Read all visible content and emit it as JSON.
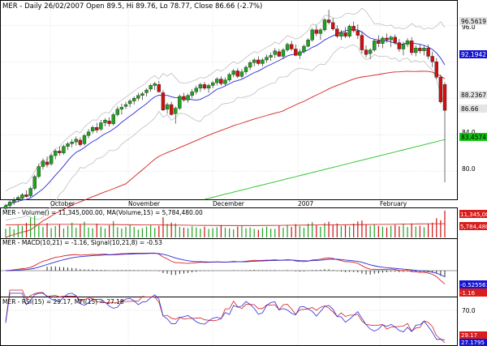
{
  "header": "MER - Daily 26/02/2007 Open 89.5, Hi 89.76, Lo 78.77, Close 86.66 (-2.7%)",
  "colors": {
    "up": "#1fa21f",
    "down": "#d10f0f",
    "ma_fast": "#2b2bd9",
    "ma_mid": "#d52020",
    "ma_slow": "#22c122",
    "band": "#bfbfbf",
    "grid": "#c0c0c0",
    "tag_blue": "#1515d0",
    "tag_red": "#d91c1c",
    "tag_green": "#15c215",
    "tag_gray": "#e4e4e4"
  },
  "x_labels": [
    "October",
    "November",
    "December",
    "2007",
    "February"
  ],
  "price_panel": {
    "axis_labels": [
      "96.5619",
      "96.0",
      "92.1942",
      "88.2367",
      "86.66",
      "84.0",
      "83.4574",
      "80.0"
    ],
    "tags": [
      {
        "text": "96.5619",
        "style": "gray"
      },
      {
        "text": "92.1942",
        "style": "blue"
      },
      {
        "text": "88.2367",
        "style": "gray"
      },
      {
        "text": "86.66",
        "style": "gray"
      },
      {
        "text": "83.4574",
        "style": "green"
      }
    ]
  },
  "volume_panel": {
    "label": "MER - Volume() = 11,345,000.00, MA(Volume,15) = 5,784,480.00",
    "tags": [
      "11,345,000",
      "5,784,480"
    ]
  },
  "macd_panel": {
    "label": "MER - MACD(10,21) = -1.16, Signal(10,21,8) = -0.53",
    "tags": [
      "-0.525561",
      "-1.16"
    ]
  },
  "rsi_panel": {
    "label": "MER - RSI(15) = 29.17, MFI(15) = 27.18",
    "axis": [
      "70.0"
    ],
    "tags": [
      "29.17",
      "27.1795"
    ]
  },
  "chart_data": {
    "type": "candlestick",
    "title": "MER - Daily 26/02/2007 Open 89.5, Hi 89.76, Lo 78.77, Close 86.66 (-2.7%)",
    "ylim": [
      76.9,
      98.6
    ],
    "candles": [
      [
        75.9,
        76.4,
        75.7,
        76.2
      ],
      [
        76.2,
        76.8,
        76.0,
        76.6
      ],
      [
        76.6,
        77.1,
        76.3,
        76.8
      ],
      [
        76.9,
        77.3,
        76.6,
        77.1
      ],
      [
        77.0,
        77.6,
        76.8,
        77.4
      ],
      [
        77.4,
        77.9,
        77.1,
        77.2
      ],
      [
        77.3,
        78.3,
        77.1,
        78.1
      ],
      [
        78.1,
        79.6,
        77.9,
        79.4
      ],
      [
        79.4,
        80.8,
        79.2,
        80.5
      ],
      [
        80.5,
        81.4,
        80.2,
        81.1
      ],
      [
        81.0,
        81.6,
        80.4,
        80.7
      ],
      [
        80.8,
        81.9,
        80.6,
        81.7
      ],
      [
        81.7,
        82.4,
        81.3,
        82.2
      ],
      [
        82.2,
        82.7,
        81.7,
        82.0
      ],
      [
        82.0,
        82.9,
        81.8,
        82.7
      ],
      [
        82.7,
        83.2,
        82.3,
        83.0
      ],
      [
        83.0,
        83.5,
        82.6,
        83.2
      ],
      [
        83.2,
        83.8,
        82.8,
        83.5
      ],
      [
        83.4,
        83.7,
        82.7,
        82.9
      ],
      [
        83.0,
        84.1,
        82.8,
        83.9
      ],
      [
        83.9,
        84.6,
        83.6,
        84.3
      ],
      [
        84.4,
        85.0,
        84.1,
        84.8
      ],
      [
        84.8,
        85.3,
        84.2,
        84.5
      ],
      [
        84.6,
        85.6,
        84.4,
        85.3
      ],
      [
        85.3,
        85.8,
        84.9,
        85.6
      ],
      [
        85.5,
        85.9,
        84.9,
        85.2
      ],
      [
        85.2,
        86.4,
        85.0,
        86.2
      ],
      [
        86.2,
        87.1,
        86.0,
        86.8
      ],
      [
        86.8,
        87.4,
        86.2,
        87.0
      ],
      [
        87.1,
        87.6,
        86.8,
        87.3
      ],
      [
        87.4,
        87.9,
        87.0,
        87.7
      ],
      [
        87.7,
        88.2,
        87.3,
        88.0
      ],
      [
        88.0,
        88.6,
        87.7,
        88.3
      ],
      [
        88.3,
        88.7,
        87.8,
        88.5
      ],
      [
        88.6,
        89.1,
        88.2,
        88.9
      ],
      [
        89.0,
        89.6,
        88.7,
        89.4
      ],
      [
        89.4,
        89.8,
        88.9,
        89.6
      ],
      [
        89.5,
        89.9,
        88.6,
        88.7
      ],
      [
        88.6,
        88.9,
        86.6,
        86.7
      ],
      [
        86.8,
        87.5,
        86.3,
        87.3
      ],
      [
        87.3,
        87.6,
        86.1,
        86.2
      ],
      [
        86.3,
        87.1,
        85.2,
        86.9
      ],
      [
        86.9,
        88.4,
        86.7,
        88.2
      ],
      [
        88.2,
        88.6,
        87.6,
        87.8
      ],
      [
        87.8,
        88.5,
        87.5,
        88.3
      ],
      [
        88.3,
        89.0,
        88.0,
        88.7
      ],
      [
        88.7,
        89.4,
        88.4,
        89.1
      ],
      [
        89.1,
        89.7,
        88.7,
        89.5
      ],
      [
        89.5,
        89.8,
        88.9,
        89.1
      ],
      [
        89.1,
        89.6,
        88.6,
        89.4
      ],
      [
        89.4,
        89.9,
        89.1,
        89.7
      ],
      [
        89.7,
        90.3,
        89.4,
        90.1
      ],
      [
        90.1,
        90.4,
        89.4,
        89.6
      ],
      [
        89.6,
        90.3,
        89.4,
        90.0
      ],
      [
        90.0,
        90.8,
        89.8,
        90.6
      ],
      [
        90.6,
        91.2,
        90.3,
        91.0
      ],
      [
        91.0,
        91.3,
        90.2,
        90.4
      ],
      [
        90.4,
        91.2,
        90.2,
        90.9
      ],
      [
        90.9,
        91.6,
        90.6,
        91.4
      ],
      [
        91.4,
        92.1,
        91.1,
        91.9
      ],
      [
        91.9,
        92.4,
        91.5,
        92.2
      ],
      [
        92.2,
        92.6,
        91.6,
        91.8
      ],
      [
        91.8,
        92.4,
        91.5,
        92.2
      ],
      [
        92.2,
        92.8,
        91.9,
        92.5
      ],
      [
        92.5,
        93.0,
        92.1,
        92.7
      ],
      [
        92.8,
        93.5,
        92.4,
        93.2
      ],
      [
        93.1,
        93.4,
        92.5,
        92.6
      ],
      [
        92.6,
        93.5,
        92.3,
        93.3
      ],
      [
        93.3,
        94.1,
        93.1,
        93.9
      ],
      [
        93.9,
        94.3,
        93.2,
        93.4
      ],
      [
        93.4,
        93.9,
        92.6,
        92.7
      ],
      [
        92.7,
        93.4,
        92.3,
        93.1
      ],
      [
        93.1,
        93.9,
        92.9,
        93.7
      ],
      [
        93.7,
        94.6,
        93.6,
        94.4
      ],
      [
        94.4,
        95.7,
        94.2,
        95.5
      ],
      [
        95.5,
        96.0,
        94.8,
        95.1
      ],
      [
        95.1,
        95.7,
        94.4,
        95.5
      ],
      [
        95.5,
        96.8,
        95.3,
        96.6
      ],
      [
        96.6,
        97.7,
        96.1,
        96.3
      ],
      [
        96.3,
        96.8,
        95.4,
        95.6
      ],
      [
        95.6,
        96.0,
        94.6,
        94.8
      ],
      [
        94.8,
        95.5,
        94.4,
        95.2
      ],
      [
        95.2,
        95.8,
        94.6,
        94.8
      ],
      [
        94.8,
        96.1,
        94.6,
        95.9
      ],
      [
        95.9,
        96.4,
        95.2,
        95.4
      ],
      [
        95.4,
        96.1,
        94.5,
        94.9
      ],
      [
        94.9,
        95.3,
        92.9,
        93.3
      ],
      [
        93.3,
        93.8,
        92.5,
        92.8
      ],
      [
        92.9,
        93.5,
        92.3,
        93.3
      ],
      [
        93.3,
        94.5,
        93.1,
        94.3
      ],
      [
        94.3,
        94.9,
        93.6,
        94.0
      ],
      [
        94.0,
        94.8,
        93.5,
        94.6
      ],
      [
        94.6,
        95.1,
        94.1,
        94.4
      ],
      [
        94.4,
        94.9,
        93.6,
        94.7
      ],
      [
        94.7,
        95.0,
        93.9,
        94.1
      ],
      [
        94.1,
        94.5,
        93.1,
        93.4
      ],
      [
        93.4,
        94.2,
        92.7,
        93.9
      ],
      [
        93.9,
        94.6,
        93.6,
        94.3
      ],
      [
        94.3,
        94.7,
        92.7,
        93.0
      ],
      [
        93.0,
        93.8,
        92.6,
        93.5
      ],
      [
        93.5,
        93.9,
        92.9,
        93.2
      ],
      [
        93.2,
        93.8,
        92.7,
        93.5
      ],
      [
        93.5,
        93.9,
        92.3,
        92.6
      ],
      [
        92.6,
        93.1,
        91.4,
        92.0
      ],
      [
        92.0,
        92.4,
        90.1,
        90.3
      ],
      [
        90.3,
        90.6,
        87.4,
        87.6
      ],
      [
        89.5,
        89.76,
        78.77,
        86.66
      ]
    ],
    "volume": [
      3.6,
      4.5,
      3.5,
      5.2,
      4.8,
      6.1,
      8.4,
      9.2,
      5.1,
      4.4,
      6.0,
      3.9,
      4.8,
      5.6,
      3.8,
      4.9,
      6.2,
      4.1,
      5.5,
      6.6,
      4.2,
      3.9,
      5.8,
      4.6,
      3.7,
      5.1,
      6.9,
      4.3,
      3.8,
      4.5,
      5.2,
      4.4,
      3.3,
      3.9,
      4.6,
      5.1,
      4.0,
      4.9,
      8.5,
      5.7,
      6.2,
      5.9,
      4.4,
      4.1,
      3.9,
      4.7,
      4.2,
      3.7,
      4.5,
      3.6,
      3.9,
      4.3,
      5.2,
      4.1,
      3.8,
      3.4,
      4.6,
      4.8,
      3.9,
      4.2,
      3.6,
      3.2,
      4.0,
      4.5,
      3.7,
      3.6,
      4.9,
      4.1,
      5.3,
      4.4,
      5.6,
      4.8,
      4.1,
      5.8,
      6.4,
      5.2,
      4.5,
      6.1,
      6.6,
      5.4,
      5.9,
      4.8,
      5.2,
      4.6,
      5.8,
      6.7,
      7.1,
      5.5,
      4.9,
      5.6,
      4.8,
      4.5,
      4.2,
      4.9,
      5.3,
      4.7,
      5.8,
      4.4,
      5.9,
      4.6,
      4.9,
      4.3,
      5.7,
      6.2,
      8.1,
      7.2,
      11.3
    ],
    "volume_ma": [
      5.3,
      5.4,
      5.4,
      5.45,
      5.5,
      5.5,
      5.5,
      5.45,
      5.4,
      5.35,
      5.3,
      5.25,
      5.2,
      5.15,
      5.1,
      5.05,
      5.0,
      5.0,
      5.0,
      5.05,
      5.1,
      5.15,
      5.2,
      5.25,
      5.3,
      5.35,
      5.4,
      5.45,
      5.5,
      5.6,
      5.7,
      5.75,
      5.78
    ],
    "overlays": [
      "MA (blue)",
      "MA (red)",
      "MA (green)",
      "Bollinger Bands (gray)"
    ],
    "indicators": {
      "macd": {
        "name": "MACD(10,21)",
        "last": -1.16
      },
      "signal": {
        "name": "Signal(10,21,8)",
        "last": -0.53
      },
      "rsi": {
        "name": "RSI(15)",
        "last": 29.17
      },
      "mfi": {
        "name": "MFI(15)",
        "last": 27.18
      }
    }
  }
}
